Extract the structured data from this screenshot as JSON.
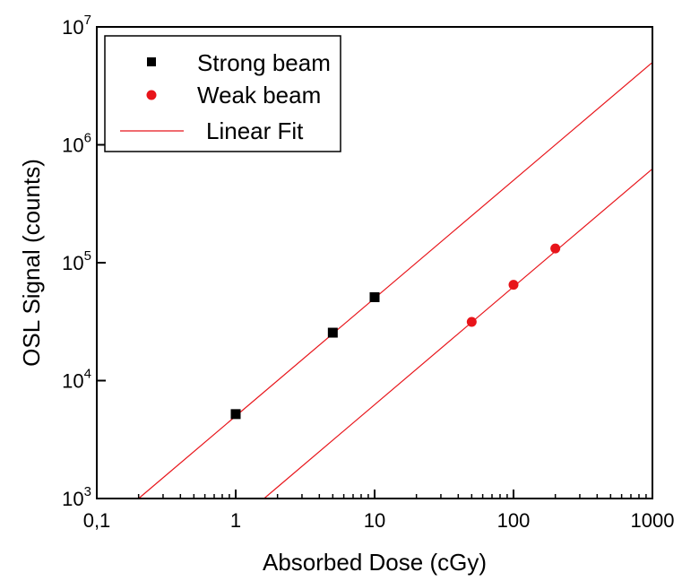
{
  "chart_data": {
    "type": "scatter",
    "title": "",
    "xlabel": "Absorbed Dose (cGy)",
    "ylabel": "OSL Signal (counts)",
    "xscale": "log",
    "yscale": "log",
    "xlim": [
      0.1,
      1000
    ],
    "ylim": [
      1000,
      10000000
    ],
    "x_tick_labels": [
      "0,1",
      "1",
      "10",
      "100",
      "1000"
    ],
    "y_tick_labels": [
      {
        "base": "10",
        "exp": "3"
      },
      {
        "base": "10",
        "exp": "4"
      },
      {
        "base": "10",
        "exp": "5"
      },
      {
        "base": "10",
        "exp": "6"
      },
      {
        "base": "10",
        "exp": "7"
      }
    ],
    "grid": false,
    "legend_position": "top-left",
    "series": [
      {
        "name": "Strong beam",
        "marker": "square",
        "color": "#000000",
        "x": [
          1,
          5,
          10
        ],
        "y": [
          5200,
          25500,
          51000
        ]
      },
      {
        "name": "Weak beam",
        "marker": "circle",
        "color": "#e8141a",
        "x": [
          50,
          100,
          200
        ],
        "y": [
          31500,
          65000,
          132000
        ]
      }
    ],
    "fits": [
      {
        "name": "Linear Fit",
        "color": "#e8141a",
        "x": [
          0.2,
          1000
        ],
        "y": [
          1000,
          5000000
        ]
      },
      {
        "name": "Linear Fit",
        "color": "#e8141a",
        "x": [
          1.6,
          1000
        ],
        "y": [
          1000,
          625000
        ]
      }
    ],
    "legend": [
      {
        "label": "Strong beam",
        "symbol": "square"
      },
      {
        "label": "Weak beam",
        "symbol": "circle"
      },
      {
        "label": "Linear Fit",
        "symbol": "line"
      }
    ]
  }
}
